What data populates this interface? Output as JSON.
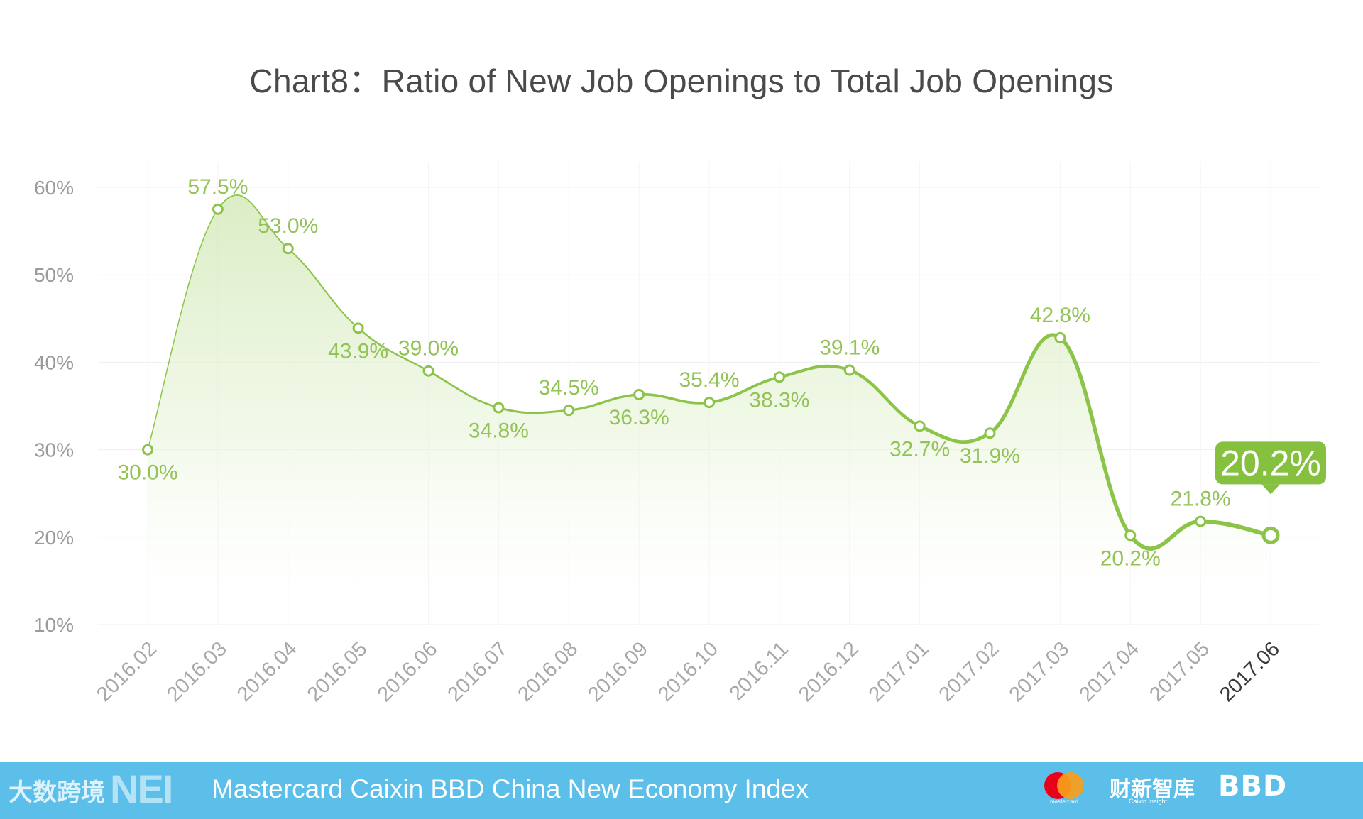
{
  "chart_data": {
    "type": "line",
    "title": "Chart8：Ratio of New Job Openings to Total Job Openings",
    "categories": [
      "2016.02",
      "2016.03",
      "2016.04",
      "2016.05",
      "2016.06",
      "2016.07",
      "2016.08",
      "2016.09",
      "2016.10",
      "2016.11",
      "2016.12",
      "2017.01",
      "2017.02",
      "2017.03",
      "2017.04",
      "2017.05",
      "2017.06"
    ],
    "values": [
      30.0,
      57.5,
      53.0,
      43.9,
      39.0,
      34.8,
      34.5,
      36.3,
      35.4,
      38.3,
      39.1,
      32.7,
      31.9,
      42.8,
      20.2,
      21.8,
      20.2
    ],
    "data_labels": [
      "30.0%",
      "57.5%",
      "53.0%",
      "43.9%",
      "39.0%",
      "34.8%",
      "34.5%",
      "36.3%",
      "35.4%",
      "38.3%",
      "39.1%",
      "32.7%",
      "31.9%",
      "42.8%",
      "20.2%",
      "21.8%",
      "20.2%"
    ],
    "label_positions": [
      "below",
      "above",
      "above",
      "below",
      "above",
      "below",
      "above",
      "below",
      "above",
      "below",
      "above",
      "below",
      "below",
      "above",
      "below",
      "above",
      "callout"
    ],
    "yticks": [
      10,
      20,
      30,
      40,
      50,
      60
    ],
    "ytick_labels": [
      "10%",
      "20%",
      "30%",
      "40%",
      "50%",
      "60%"
    ],
    "ylim": [
      10,
      60
    ],
    "xlabel": "",
    "ylabel": "",
    "grid": true,
    "highlight": {
      "label": "20.2%",
      "category": "2017.06"
    },
    "colors": {
      "line": "#8cc449",
      "label": "#93c257",
      "callout": "#85c13f",
      "grid": "#efefef"
    }
  },
  "footer": {
    "text": "Mastercard Caixin BBD China New Economy Index",
    "watermark": "大数跨境",
    "nei_logo": "NEI",
    "mastercard_label": "mastercard",
    "caixin_logo": "财新智库",
    "caixin_sub": "Caixin Insight",
    "bbd_logo": "BBD",
    "background": "#5bbfe9"
  }
}
